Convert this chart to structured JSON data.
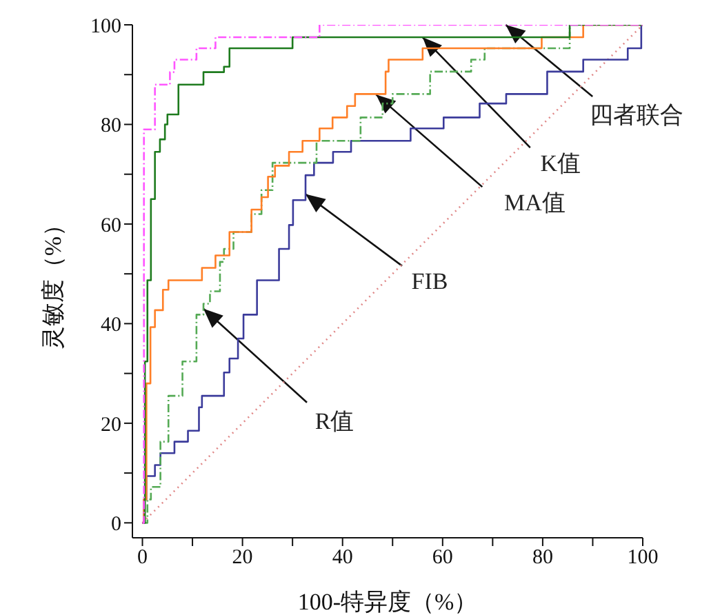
{
  "chart_data": {
    "type": "step",
    "xlabel": "100-特异度（%）",
    "ylabel": "灵敏度（%）",
    "xlim": [
      -2,
      100
    ],
    "ylim": [
      -3,
      100
    ],
    "xticks": [
      0,
      {
        "value": 10,
        "label": null
      },
      20,
      {
        "value": 30,
        "label": null
      },
      40,
      {
        "value": 50,
        "label": null
      },
      60,
      {
        "value": 70,
        "label": null
      },
      80,
      {
        "value": 90,
        "label": null
      },
      100
    ],
    "yticks": [
      0,
      {
        "value": 10,
        "label": null
      },
      20,
      {
        "value": 30,
        "label": null
      },
      40,
      {
        "value": 50,
        "label": null
      },
      60,
      {
        "value": 70,
        "label": null
      },
      80,
      {
        "value": 90,
        "label": null
      },
      100
    ],
    "grid": false,
    "legend": false,
    "series": [
      {
        "color": "#e08888",
        "type": "line",
        "line_style": "dotted",
        "x": [
          0,
          100
        ],
        "values": [
          0,
          100
        ]
      },
      {
        "color": "#3b3b9b",
        "line_style": "solid",
        "x": [
          0,
          0.3,
          0.8,
          2.5,
          3.6,
          6.4,
          9.1,
          11.3,
          11.9,
          16.3,
          17.4,
          19.1,
          20.2,
          22.9,
          27.3,
          29.3,
          30.1,
          32.6,
          34.3,
          38.1,
          41.7,
          53.6,
          60.2,
          67.4,
          72.7,
          80.9,
          88.1,
          97,
          99.7,
          100
        ],
        "values": [
          0,
          4.7,
          9.4,
          11.6,
          14,
          16.3,
          18.5,
          23.2,
          25.5,
          30.2,
          33,
          37,
          41.8,
          48.7,
          55,
          59.8,
          64.8,
          69.8,
          72.3,
          74.5,
          76.7,
          79.2,
          81.4,
          84.2,
          86.1,
          90.6,
          93,
          95.3,
          100,
          100
        ]
      },
      {
        "color": "#55aa55",
        "line_style": "dashed",
        "x": [
          0,
          1,
          1.7,
          3.6,
          5.2,
          8,
          10.8,
          12.2,
          13.5,
          15.5,
          16.3,
          18.2,
          21.8,
          23.8,
          26,
          34.8,
          43.6,
          48,
          50,
          57.5,
          65.7,
          68.4,
          85.4,
          100
        ],
        "values": [
          0,
          4.7,
          7.2,
          16.3,
          25.5,
          32.4,
          41.8,
          44,
          46.5,
          52.4,
          55,
          58.4,
          62,
          66.8,
          72.3,
          76.7,
          81.4,
          84.2,
          86.1,
          90.6,
          93,
          95.3,
          100,
          100
        ]
      },
      {
        "color": "#ff7f27",
        "line_style": "solid",
        "x": [
          0,
          0.3,
          0.8,
          1.6,
          2.5,
          4.1,
          5.2,
          11.9,
          14.6,
          17.4,
          21.8,
          23.8,
          25.1,
          26.5,
          29.3,
          32,
          35.4,
          38,
          40.9,
          42.5,
          48.6,
          49.2,
          56,
          79.8,
          88.1,
          100
        ],
        "values": [
          0,
          4.7,
          28,
          39.3,
          42.7,
          46.8,
          48.7,
          51.2,
          53.7,
          58.4,
          62.9,
          65.4,
          69.5,
          71.7,
          74.5,
          76.7,
          79.2,
          81.4,
          83.7,
          86.1,
          90.6,
          93,
          95.3,
          97.5,
          100,
          100
        ]
      },
      {
        "color": "#1e7b1e",
        "line_style": "solid",
        "x": [
          0,
          0.5,
          1,
          1.7,
          2.5,
          3.5,
          4.5,
          5,
          7.2,
          12.2,
          16.3,
          17.4,
          30,
          85.4,
          100
        ],
        "values": [
          0,
          32.4,
          48.7,
          65,
          74.5,
          77,
          80,
          82,
          88,
          90.5,
          91.6,
          95.3,
          97.5,
          100,
          100
        ]
      },
      {
        "color": "#ff55ff",
        "line_style": "dashed",
        "x": [
          0,
          0.3,
          2.5,
          5.5,
          6.4,
          10.8,
          14.6,
          35.4,
          100
        ],
        "values": [
          0,
          79,
          88,
          90.5,
          93,
          95.3,
          97.5,
          100,
          100
        ]
      }
    ],
    "annotations": [
      {
        "text": "四者联合",
        "x": 72.6,
        "y": 100
      },
      {
        "text": "K值",
        "x": 56,
        "y": 97.5
      },
      {
        "text": "MA值",
        "x": 46.7,
        "y": 86
      },
      {
        "text": "FIB",
        "x": 32.6,
        "y": 66
      },
      {
        "text": "R值",
        "x": 12.2,
        "y": 43
      }
    ]
  }
}
